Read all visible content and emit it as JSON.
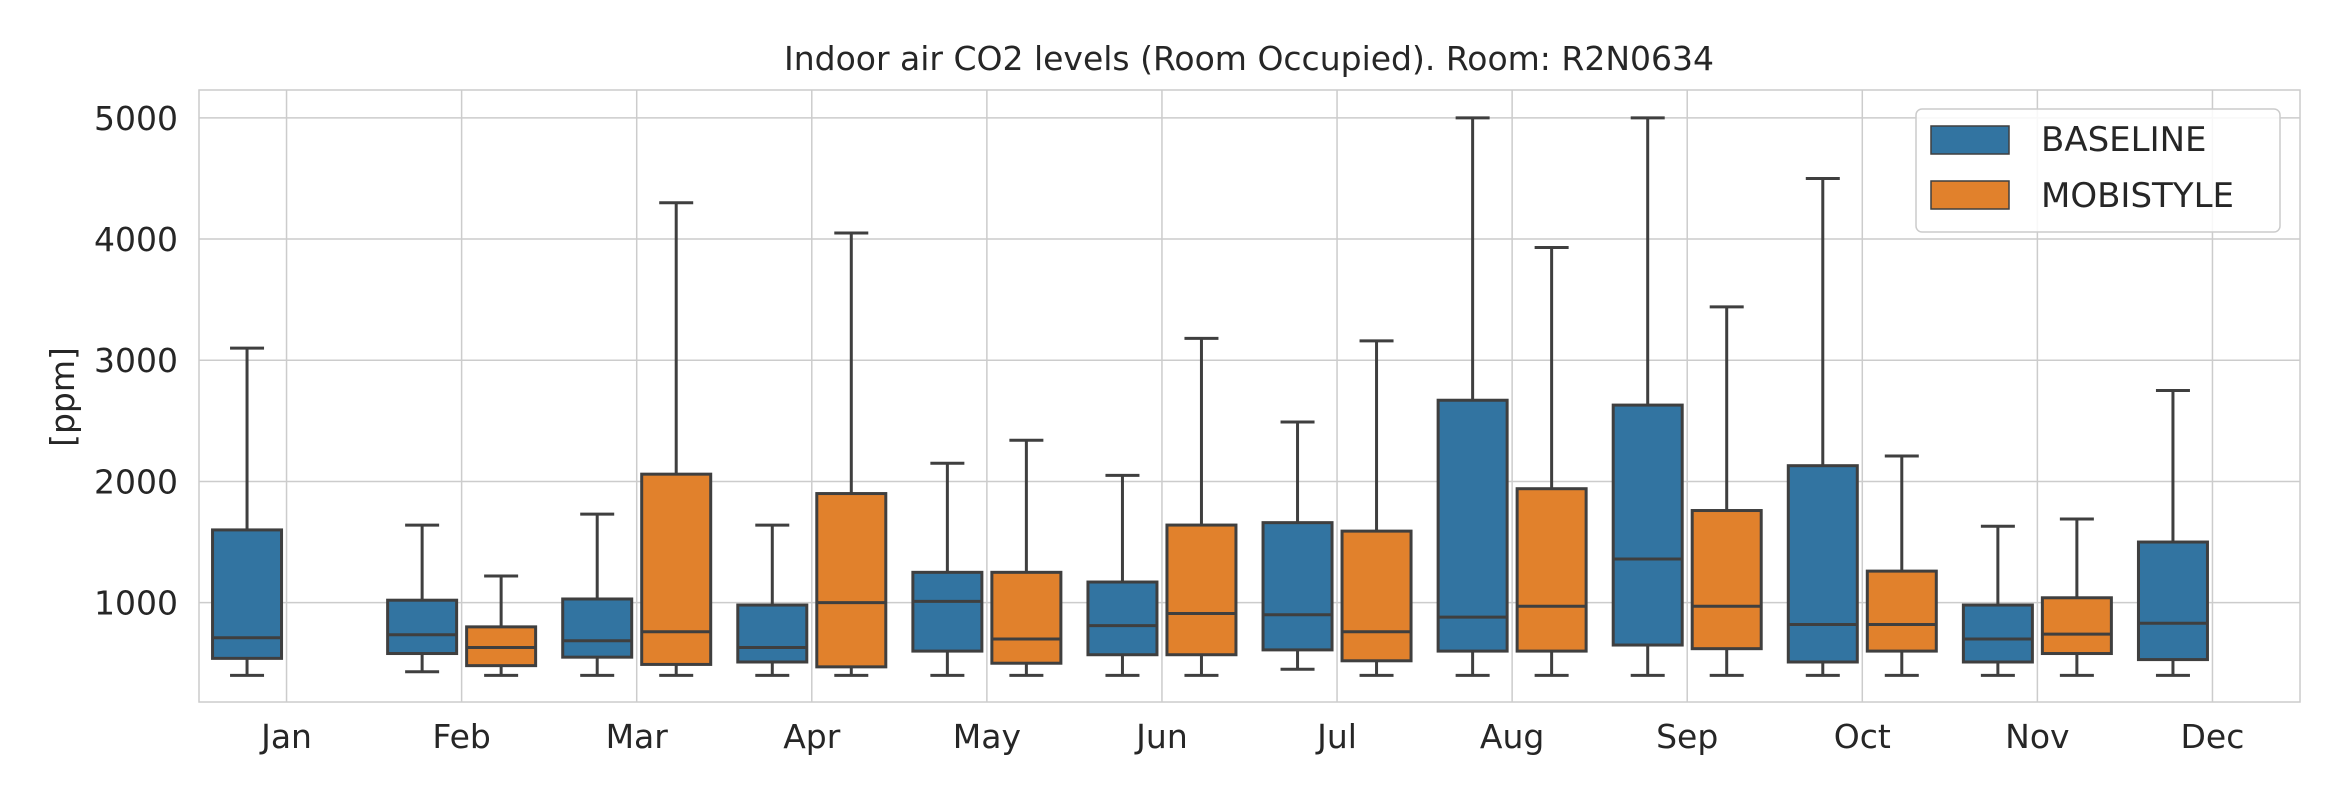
{
  "chart_data": {
    "type": "box",
    "title": "Indoor air CO2 levels (Room Occupied). Room: R2N0634",
    "xlabel": "",
    "ylabel": "[ppm]",
    "ylim": [
      180,
      5230
    ],
    "yticks": [
      1000,
      2000,
      3000,
      4000,
      5000
    ],
    "grid": true,
    "legend_position": "top-right",
    "categories": [
      "Jan",
      "Feb",
      "Mar",
      "Apr",
      "May",
      "Jun",
      "Jul",
      "Aug",
      "Sep",
      "Oct",
      "Nov",
      "Dec"
    ],
    "series": [
      {
        "name": "BASELINE",
        "color": "#3274a1",
        "boxes": [
          {
            "whislo": 400,
            "q1": 540,
            "med": 710,
            "q3": 1600,
            "whishi": 3100
          },
          {
            "whislo": 430,
            "q1": 580,
            "med": 735,
            "q3": 1020,
            "whishi": 1640
          },
          {
            "whislo": 400,
            "q1": 550,
            "med": 685,
            "q3": 1030,
            "whishi": 1730
          },
          {
            "whislo": 400,
            "q1": 510,
            "med": 630,
            "q3": 980,
            "whishi": 1640
          },
          {
            "whislo": 400,
            "q1": 600,
            "med": 1010,
            "q3": 1250,
            "whishi": 2150
          },
          {
            "whislo": 400,
            "q1": 570,
            "med": 810,
            "q3": 1170,
            "whishi": 2050
          },
          {
            "whislo": 450,
            "q1": 610,
            "med": 900,
            "q3": 1660,
            "whishi": 2490
          },
          {
            "whislo": 400,
            "q1": 600,
            "med": 880,
            "q3": 2670,
            "whishi": 5000
          },
          {
            "whislo": 400,
            "q1": 650,
            "med": 1360,
            "q3": 2630,
            "whishi": 5000
          },
          {
            "whislo": 400,
            "q1": 510,
            "med": 820,
            "q3": 2130,
            "whishi": 4500
          },
          {
            "whislo": 400,
            "q1": 510,
            "med": 700,
            "q3": 980,
            "whishi": 1630
          },
          {
            "whislo": 400,
            "q1": 530,
            "med": 830,
            "q3": 1500,
            "whishi": 2750
          }
        ]
      },
      {
        "name": "MOBISTYLE",
        "color": "#e1812c",
        "boxes": [
          null,
          {
            "whislo": 400,
            "q1": 480,
            "med": 630,
            "q3": 800,
            "whishi": 1220
          },
          {
            "whislo": 400,
            "q1": 490,
            "med": 760,
            "q3": 2060,
            "whishi": 4300
          },
          {
            "whislo": 400,
            "q1": 470,
            "med": 1000,
            "q3": 1900,
            "whishi": 4050
          },
          {
            "whislo": 400,
            "q1": 500,
            "med": 700,
            "q3": 1250,
            "whishi": 2340
          },
          {
            "whislo": 400,
            "q1": 570,
            "med": 910,
            "q3": 1640,
            "whishi": 3180
          },
          {
            "whislo": 400,
            "q1": 520,
            "med": 760,
            "q3": 1590,
            "whishi": 3160
          },
          {
            "whislo": 400,
            "q1": 600,
            "med": 970,
            "q3": 1940,
            "whishi": 3930
          },
          {
            "whislo": 400,
            "q1": 620,
            "med": 970,
            "q3": 1760,
            "whishi": 3440
          },
          {
            "whislo": 400,
            "q1": 600,
            "med": 820,
            "q3": 1260,
            "whishi": 2210
          },
          {
            "whislo": 400,
            "q1": 580,
            "med": 740,
            "q3": 1040,
            "whishi": 1690
          },
          null
        ]
      }
    ]
  }
}
